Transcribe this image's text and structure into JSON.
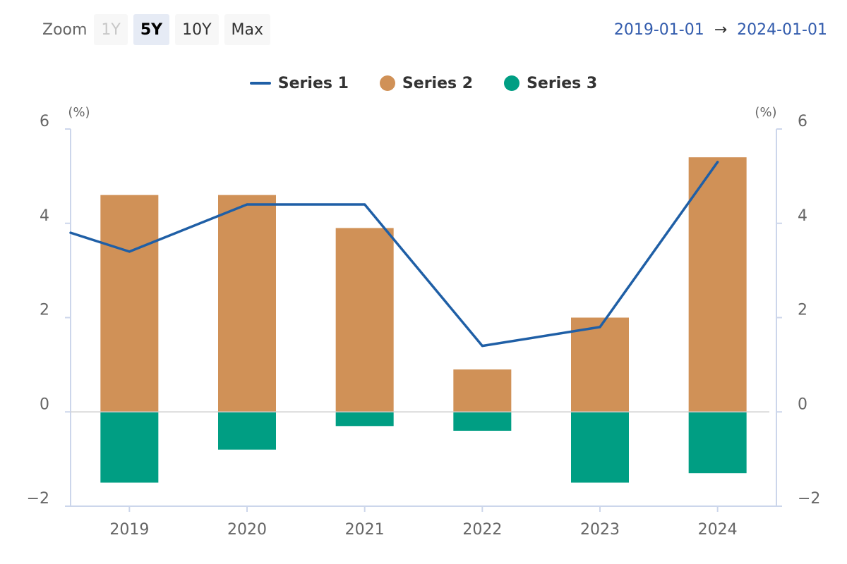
{
  "toolbar": {
    "zoom_label": "Zoom",
    "buttons": [
      {
        "label": "1Y",
        "state": "disabled"
      },
      {
        "label": "5Y",
        "state": "active"
      },
      {
        "label": "10Y",
        "state": "normal"
      },
      {
        "label": "Max",
        "state": "normal"
      }
    ]
  },
  "range": {
    "from": "2019-01-01",
    "arrow": "→",
    "to": "2024-01-01"
  },
  "colors": {
    "series1": "#1f5fa6",
    "series2": "#d09157",
    "series3": "#009e83",
    "axis": "#ccd6eb",
    "zero": "#cccccc"
  },
  "chart_data": {
    "type": "bar",
    "categories": [
      "2019",
      "2020",
      "2021",
      "2022",
      "2023",
      "2024"
    ],
    "series": [
      {
        "name": "Series 1",
        "type": "line",
        "values": [
          3.4,
          4.4,
          4.4,
          1.4,
          1.8,
          5.3
        ],
        "start_value": 3.8
      },
      {
        "name": "Series 2",
        "type": "bar",
        "values": [
          4.6,
          4.6,
          3.9,
          0.9,
          2.0,
          5.4
        ]
      },
      {
        "name": "Series 3",
        "type": "bar",
        "values": [
          -1.5,
          -0.8,
          -0.3,
          -0.4,
          -1.5,
          -1.3
        ]
      }
    ],
    "yticks": [
      "6",
      "4",
      "2",
      "0",
      "−2"
    ],
    "ylim": [
      -2,
      6
    ],
    "yunit_left": "(%)",
    "yunit_right": "(%)",
    "legend_position": "top-center"
  }
}
